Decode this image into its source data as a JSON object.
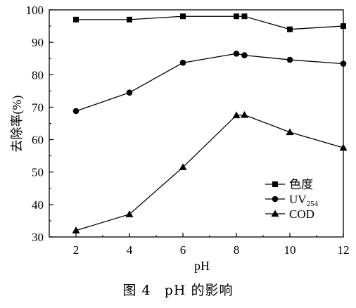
{
  "caption": {
    "figure_no": "图 4",
    "text": "pH 的影响"
  },
  "chart_data": {
    "type": "line",
    "title": "",
    "xlabel": "pH",
    "ylabel": "去除率(%)",
    "xlim": [
      1,
      12
    ],
    "ylim": [
      30,
      100
    ],
    "x_ticks": [
      2,
      4,
      6,
      8,
      10,
      12
    ],
    "y_ticks": [
      30,
      40,
      50,
      60,
      70,
      80,
      90,
      100
    ],
    "grid": false,
    "legend_position": "right",
    "series": [
      {
        "name": "色度",
        "name_sub": "",
        "marker": "square",
        "x": [
          2,
          4,
          6,
          8,
          8.3,
          10,
          12
        ],
        "y": [
          97,
          97,
          98,
          98,
          98,
          94,
          95
        ]
      },
      {
        "name": "UV",
        "name_sub": "254",
        "marker": "circle",
        "x": [
          2,
          4,
          6,
          8,
          8.3,
          10,
          12
        ],
        "y": [
          68.8,
          74.5,
          83.7,
          86.5,
          86,
          84.6,
          83.4
        ]
      },
      {
        "name": "COD",
        "name_sub": "",
        "marker": "triangle",
        "x": [
          2,
          4,
          6,
          8,
          8.3,
          10,
          12
        ],
        "y": [
          32,
          37,
          51.5,
          67.5,
          67.6,
          62.3,
          57.5
        ]
      }
    ]
  }
}
